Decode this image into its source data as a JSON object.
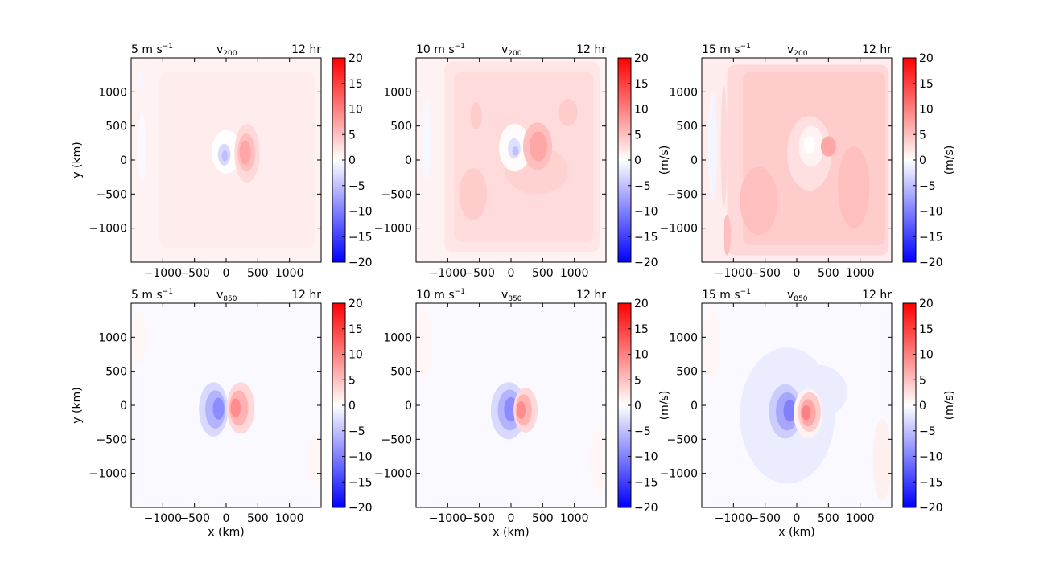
{
  "figure": {
    "background": "#ffffff",
    "colormap": "bwr"
  },
  "chart_data": [
    {
      "type": "heatmap",
      "row": 0,
      "col": 0,
      "title_left": "5 m s",
      "title_left_sup": "−1",
      "title_center": "v",
      "title_center_sub": "200",
      "title_right": "12 hr",
      "xlabel": "",
      "ylabel": "y (km)",
      "xlim": [
        -1500,
        1500
      ],
      "ylim": [
        -1500,
        1500
      ],
      "xticks": [
        -1000,
        -500,
        0,
        500,
        1000
      ],
      "xtick_labels": [
        "−1000",
        "−500",
        "0",
        "500",
        "1000"
      ],
      "yticks": [
        1000,
        500,
        0,
        -500,
        -1000
      ],
      "ytick_labels": [
        "1000",
        "500",
        "0",
        "−500",
        "−1000"
      ],
      "colorbar": {
        "label": "",
        "range": [
          -20,
          20
        ],
        "ticks": [
          20,
          15,
          10,
          5,
          0,
          -5,
          -10,
          -15,
          -20
        ],
        "tick_labels": [
          "20",
          "15",
          "10",
          "5",
          "0",
          "−5",
          "−10",
          "−15",
          "−20"
        ]
      },
      "background_value": 1,
      "features": [
        {
          "kind": "box",
          "x0": -1050,
          "x1": 1400,
          "y0": -1300,
          "y1": 1300,
          "value": 1.5,
          "rounded": true
        },
        {
          "kind": "blob",
          "cx": -1350,
          "cy": 1150,
          "rx": 60,
          "ry": 150,
          "value": -0.7
        },
        {
          "kind": "blob",
          "cx": -1330,
          "cy": 200,
          "rx": 60,
          "ry": 500,
          "value": -0.5
        },
        {
          "kind": "blob",
          "cx": 0,
          "cy": 120,
          "rx": 230,
          "ry": 320,
          "value": -0.1
        },
        {
          "kind": "blob",
          "cx": 330,
          "cy": 100,
          "rx": 200,
          "ry": 430,
          "value": 3
        },
        {
          "kind": "blob",
          "cx": 320,
          "cy": 110,
          "rx": 140,
          "ry": 280,
          "value": 5
        },
        {
          "kind": "blob",
          "cx": 300,
          "cy": 110,
          "rx": 90,
          "ry": 180,
          "value": 7
        },
        {
          "kind": "blob",
          "cx": -30,
          "cy": 80,
          "rx": 100,
          "ry": 160,
          "value": -3
        },
        {
          "kind": "blob",
          "cx": -20,
          "cy": 60,
          "rx": 50,
          "ry": 80,
          "value": -5
        }
      ]
    },
    {
      "type": "heatmap",
      "row": 0,
      "col": 1,
      "title_left": "10 m s",
      "title_left_sup": "−1",
      "title_center": "v",
      "title_center_sub": "200",
      "title_right": "12 hr",
      "xlabel": "",
      "ylabel": "",
      "xlim": [
        -1500,
        1500
      ],
      "ylim": [
        -1500,
        1500
      ],
      "xticks": [
        -1000,
        -500,
        0,
        500,
        1000
      ],
      "xtick_labels": [
        "−1000",
        "−500",
        "0",
        "500",
        "1000"
      ],
      "yticks": [
        1000,
        500,
        0,
        -500,
        -1000
      ],
      "ytick_labels": [
        "1000",
        "500",
        "0",
        "−500",
        "−1000"
      ],
      "colorbar": {
        "label": "(m/s)",
        "range": [
          -20,
          20
        ],
        "ticks": [
          20,
          15,
          10,
          5,
          0,
          -5,
          -10,
          -15,
          -20
        ],
        "tick_labels": [
          "20",
          "15",
          "10",
          "5",
          "0",
          "−5",
          "−10",
          "−15",
          "−20"
        ]
      },
      "background_value": 1,
      "features": [
        {
          "kind": "box",
          "x0": -1050,
          "x1": 1400,
          "y0": -1350,
          "y1": 1450,
          "value": 2,
          "rounded": true
        },
        {
          "kind": "box",
          "x0": -900,
          "x1": 1300,
          "y0": -1200,
          "y1": 1300,
          "value": 2.8,
          "rounded": true
        },
        {
          "kind": "blob",
          "cx": -1330,
          "cy": 300,
          "rx": 70,
          "ry": 600,
          "value": -0.6
        },
        {
          "kind": "blob",
          "cx": -550,
          "cy": 650,
          "rx": 90,
          "ry": 200,
          "value": 4
        },
        {
          "kind": "blob",
          "cx": 900,
          "cy": 700,
          "rx": 150,
          "ry": 200,
          "value": 4
        },
        {
          "kind": "blob",
          "cx": -600,
          "cy": -500,
          "rx": 220,
          "ry": 380,
          "value": 4
        },
        {
          "kind": "blob",
          "cx": 400,
          "cy": -150,
          "rx": 500,
          "ry": 350,
          "value": 3.5
        },
        {
          "kind": "blob",
          "cx": 60,
          "cy": 180,
          "rx": 250,
          "ry": 350,
          "value": 0.3
        },
        {
          "kind": "blob",
          "cx": 420,
          "cy": 200,
          "rx": 230,
          "ry": 350,
          "value": 5
        },
        {
          "kind": "blob",
          "cx": 430,
          "cy": 200,
          "rx": 140,
          "ry": 220,
          "value": 7
        },
        {
          "kind": "blob",
          "cx": 50,
          "cy": 170,
          "rx": 100,
          "ry": 150,
          "value": -2.5
        },
        {
          "kind": "blob",
          "cx": 70,
          "cy": 130,
          "rx": 50,
          "ry": 70,
          "value": -5
        }
      ]
    },
    {
      "type": "heatmap",
      "row": 0,
      "col": 2,
      "title_left": "15 m s",
      "title_left_sup": "−1",
      "title_center": "v",
      "title_center_sub": "200",
      "title_right": "12 hr",
      "xlabel": "",
      "ylabel": "",
      "xlim": [
        -1500,
        1500
      ],
      "ylim": [
        -1500,
        1500
      ],
      "xticks": [
        -1000,
        -500,
        0,
        500,
        1000
      ],
      "xtick_labels": [
        "−1000",
        "−500",
        "0",
        "500",
        "1000"
      ],
      "yticks": [
        1000,
        500,
        0,
        -500,
        -1000
      ],
      "ytick_labels": [
        "1000",
        "500",
        "0",
        "−500",
        "−1000"
      ],
      "colorbar": {
        "label": "(m/s)",
        "range": [
          -20,
          20
        ],
        "ticks": [
          20,
          15,
          10,
          5,
          0,
          -5,
          -10,
          -15,
          -20
        ],
        "tick_labels": [
          "20",
          "15",
          "10",
          "5",
          "0",
          "−5",
          "−10",
          "−15",
          "−20"
        ]
      },
      "background_value": 1.5,
      "features": [
        {
          "kind": "box",
          "x0": -1100,
          "x1": 1450,
          "y0": -1400,
          "y1": 1400,
          "value": 3,
          "rounded": true
        },
        {
          "kind": "box",
          "x0": -850,
          "x1": 1400,
          "y0": -1250,
          "y1": 1300,
          "value": 4,
          "rounded": true
        },
        {
          "kind": "blob",
          "cx": -1330,
          "cy": 200,
          "rx": 70,
          "ry": 800,
          "value": -0.8
        },
        {
          "kind": "blob",
          "cx": -1100,
          "cy": -1100,
          "rx": 60,
          "ry": 300,
          "value": 5
        },
        {
          "kind": "blob",
          "cx": -1150,
          "cy": 200,
          "rx": 50,
          "ry": 900,
          "value": 3
        },
        {
          "kind": "blob",
          "cx": -600,
          "cy": -600,
          "rx": 300,
          "ry": 500,
          "value": 5
        },
        {
          "kind": "blob",
          "cx": 900,
          "cy": -400,
          "rx": 250,
          "ry": 600,
          "value": 5
        },
        {
          "kind": "blob",
          "cx": 200,
          "cy": 100,
          "rx": 350,
          "ry": 550,
          "value": 2.5
        },
        {
          "kind": "blob",
          "cx": 230,
          "cy": 200,
          "rx": 200,
          "ry": 300,
          "value": 1
        },
        {
          "kind": "blob",
          "cx": 200,
          "cy": 220,
          "rx": 90,
          "ry": 130,
          "value": 0
        },
        {
          "kind": "blob",
          "cx": 500,
          "cy": 200,
          "rx": 120,
          "ry": 150,
          "value": 7
        }
      ]
    },
    {
      "type": "heatmap",
      "row": 1,
      "col": 0,
      "title_left": "5 m s",
      "title_left_sup": "−1",
      "title_center": "v",
      "title_center_sub": "850",
      "title_right": "12 hr",
      "xlabel": "x (km)",
      "ylabel": "y (km)",
      "xlim": [
        -1500,
        1500
      ],
      "ylim": [
        -1500,
        1500
      ],
      "xticks": [
        -1000,
        -500,
        0,
        500,
        1000
      ],
      "xtick_labels": [
        "−1000",
        "−500",
        "0",
        "500",
        "1000"
      ],
      "yticks": [
        1000,
        500,
        0,
        -500,
        -1000
      ],
      "ytick_labels": [
        "1000",
        "500",
        "0",
        "−500",
        "−1000"
      ],
      "colorbar": {
        "label": "",
        "range": [
          -20,
          20
        ],
        "ticks": [
          20,
          15,
          10,
          5,
          0,
          -5,
          -10,
          -15,
          -20
        ],
        "tick_labels": [
          "20",
          "15",
          "10",
          "5",
          "0",
          "−5",
          "−10",
          "−15",
          "−20"
        ]
      },
      "background_value": -0.5,
      "features": [
        {
          "kind": "blob",
          "cx": -1380,
          "cy": 1000,
          "rx": 120,
          "ry": 400,
          "value": 0.7
        },
        {
          "kind": "blob",
          "cx": 1400,
          "cy": -800,
          "rx": 120,
          "ry": 400,
          "value": 0.7
        },
        {
          "kind": "blob",
          "cx": -200,
          "cy": -60,
          "rx": 230,
          "ry": 400,
          "value": -3
        },
        {
          "kind": "blob",
          "cx": -170,
          "cy": -60,
          "rx": 160,
          "ry": 280,
          "value": -6
        },
        {
          "kind": "blob",
          "cx": -120,
          "cy": -50,
          "rx": 90,
          "ry": 160,
          "value": -9
        },
        {
          "kind": "blob",
          "cx": 230,
          "cy": -40,
          "rx": 220,
          "ry": 380,
          "value": 3
        },
        {
          "kind": "blob",
          "cx": 200,
          "cy": -40,
          "rx": 150,
          "ry": 260,
          "value": 6
        },
        {
          "kind": "blob",
          "cx": 150,
          "cy": -40,
          "rx": 80,
          "ry": 140,
          "value": 9
        }
      ]
    },
    {
      "type": "heatmap",
      "row": 1,
      "col": 1,
      "title_left": "10 m s",
      "title_left_sup": "−1",
      "title_center": "v",
      "title_center_sub": "850",
      "title_right": "12 hr",
      "xlabel": "x (km)",
      "ylabel": "",
      "xlim": [
        -1500,
        1500
      ],
      "ylim": [
        -1500,
        1500
      ],
      "xticks": [
        -1000,
        -500,
        0,
        500,
        1000
      ],
      "xtick_labels": [
        "−1000",
        "−500",
        "0",
        "500",
        "1000"
      ],
      "yticks": [
        1000,
        500,
        0,
        -500,
        -1000
      ],
      "ytick_labels": [
        "1000",
        "500",
        "0",
        "−500",
        "−1000"
      ],
      "colorbar": {
        "label": "(m/s)",
        "range": [
          -20,
          20
        ],
        "ticks": [
          20,
          15,
          10,
          5,
          0,
          -5,
          -10,
          -15,
          -20
        ],
        "tick_labels": [
          "20",
          "15",
          "10",
          "5",
          "0",
          "−5",
          "−10",
          "−15",
          "−20"
        ]
      },
      "background_value": -0.5,
      "features": [
        {
          "kind": "blob",
          "cx": -1380,
          "cy": 900,
          "rx": 140,
          "ry": 500,
          "value": 0.7
        },
        {
          "kind": "blob",
          "cx": 1380,
          "cy": -800,
          "rx": 140,
          "ry": 500,
          "value": 0.7
        },
        {
          "kind": "blob",
          "cx": -40,
          "cy": -80,
          "rx": 280,
          "ry": 420,
          "value": -3
        },
        {
          "kind": "blob",
          "cx": -20,
          "cy": -70,
          "rx": 190,
          "ry": 300,
          "value": -6
        },
        {
          "kind": "blob",
          "cx": 0,
          "cy": -60,
          "rx": 110,
          "ry": 180,
          "value": -9
        },
        {
          "kind": "blob",
          "cx": 230,
          "cy": -70,
          "rx": 190,
          "ry": 330,
          "value": 3
        },
        {
          "kind": "blob",
          "cx": 200,
          "cy": -70,
          "rx": 130,
          "ry": 230,
          "value": 6
        },
        {
          "kind": "blob",
          "cx": 160,
          "cy": -70,
          "rx": 70,
          "ry": 130,
          "value": 9
        }
      ]
    },
    {
      "type": "heatmap",
      "row": 1,
      "col": 2,
      "title_left": "15 m s",
      "title_left_sup": "−1",
      "title_center": "v",
      "title_center_sub": "850",
      "title_right": "12 hr",
      "xlabel": "x (km)",
      "ylabel": "",
      "xlim": [
        -1500,
        1500
      ],
      "ylim": [
        -1500,
        1500
      ],
      "xticks": [
        -1000,
        -500,
        0,
        500,
        1000
      ],
      "xtick_labels": [
        "−1000",
        "−500",
        "0",
        "500",
        "1000"
      ],
      "yticks": [
        1000,
        500,
        0,
        -500,
        -1000
      ],
      "ytick_labels": [
        "1000",
        "500",
        "0",
        "−500",
        "−1000"
      ],
      "colorbar": {
        "label": "(m/s)",
        "range": [
          -20,
          20
        ],
        "ticks": [
          20,
          15,
          10,
          5,
          0,
          -5,
          -10,
          -15,
          -20
        ],
        "tick_labels": [
          "20",
          "15",
          "10",
          "5",
          "0",
          "−5",
          "−10",
          "−15",
          "−20"
        ]
      },
      "background_value": -0.5,
      "features": [
        {
          "kind": "blob",
          "cx": -1350,
          "cy": 900,
          "rx": 150,
          "ry": 500,
          "value": 0.7
        },
        {
          "kind": "blob",
          "cx": 1350,
          "cy": -800,
          "rx": 150,
          "ry": 600,
          "value": 1.2
        },
        {
          "kind": "blob",
          "cx": -150,
          "cy": -150,
          "rx": 750,
          "ry": 1000,
          "value": -1.5
        },
        {
          "kind": "blob",
          "cx": 300,
          "cy": 200,
          "rx": 500,
          "ry": 400,
          "value": -1.5
        },
        {
          "kind": "blob",
          "cx": -180,
          "cy": -90,
          "rx": 260,
          "ry": 400,
          "value": -4
        },
        {
          "kind": "blob",
          "cx": -150,
          "cy": -90,
          "rx": 180,
          "ry": 280,
          "value": -7
        },
        {
          "kind": "blob",
          "cx": -110,
          "cy": -80,
          "rx": 100,
          "ry": 160,
          "value": -10
        },
        {
          "kind": "blob",
          "cx": 180,
          "cy": -120,
          "rx": 230,
          "ry": 360,
          "value": 1
        },
        {
          "kind": "blob",
          "cx": 200,
          "cy": -100,
          "rx": 180,
          "ry": 290,
          "value": 4
        },
        {
          "kind": "blob",
          "cx": 180,
          "cy": -110,
          "rx": 120,
          "ry": 200,
          "value": 7
        },
        {
          "kind": "blob",
          "cx": 150,
          "cy": -110,
          "rx": 70,
          "ry": 110,
          "value": 10
        }
      ]
    }
  ]
}
